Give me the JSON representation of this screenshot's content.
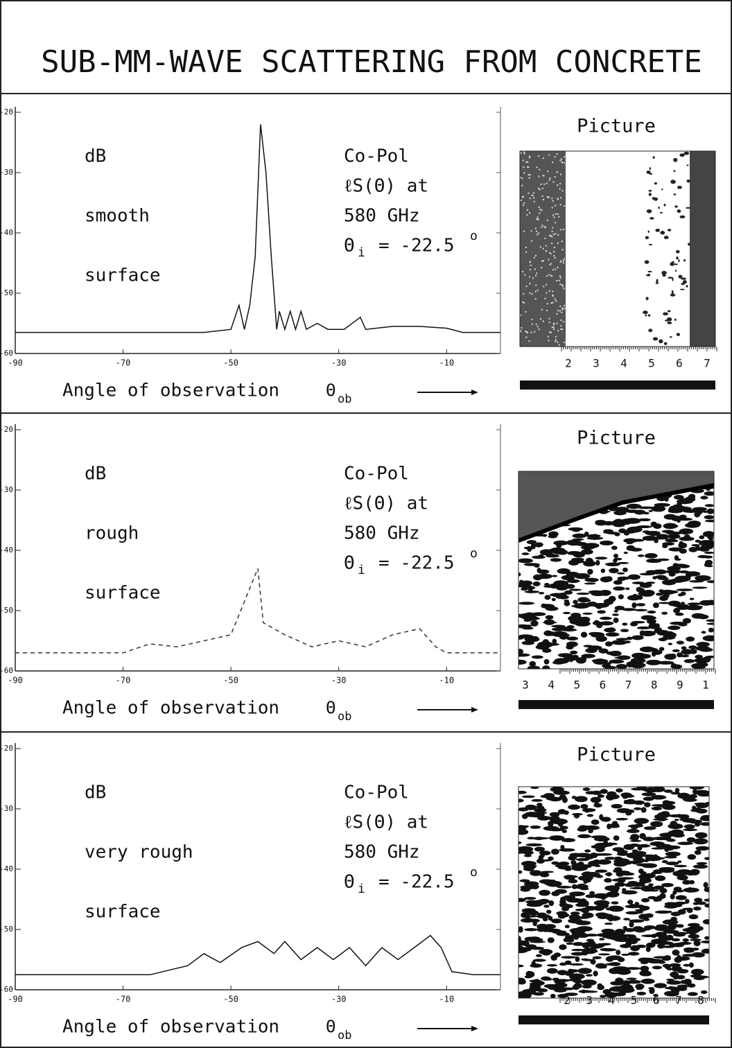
{
  "title": "SUB-MM-WAVE SCATTERING FROM CONCRETE",
  "chart_data": [
    {
      "type": "line",
      "labels_left": [
        "dB",
        "smooth",
        "surface"
      ],
      "labels_right": [
        "Co-Pol",
        "ℓS(Θ) at",
        "580 GHz"
      ],
      "incidence": {
        "symbol": "Θ",
        "sub": "i",
        "text": "= -22.5",
        "sup": "o"
      },
      "x_label": "Angle of observation",
      "x_symbol": {
        "symbol": "Θ",
        "sub": "ob"
      },
      "x": [
        -90,
        -55,
        -50,
        -48.5,
        -47.5,
        -46.5,
        -45.5,
        -44.5,
        -43.5,
        -42.5,
        -41.5,
        -41,
        -40,
        -39,
        -38,
        -37,
        -36,
        -34,
        -32,
        -29,
        -26,
        -25,
        -20,
        -15,
        -10,
        -7,
        0
      ],
      "series": [
        {
          "color": "#111111",
          "line_style": "solid",
          "values": [
            -56.5,
            -56.5,
            -56,
            -52,
            -56,
            -52,
            -44,
            -22,
            -30,
            -44,
            -56,
            -53,
            -56,
            -53,
            -56,
            -53,
            -56,
            -55,
            -56,
            -56,
            -54,
            -56,
            -55.5,
            -55.5,
            -55.8,
            -56.5,
            -56.5
          ]
        }
      ],
      "xlim": [
        -90,
        0
      ],
      "ylim": [
        -60,
        -20
      ],
      "xticks": [
        -90,
        -70,
        -50,
        -30,
        -10
      ],
      "yticks": [
        -60,
        -50,
        -40,
        -30,
        -20
      ]
    },
    {
      "type": "line",
      "labels_left": [
        "dB",
        "rough",
        "surface"
      ],
      "labels_right": [
        "Co-Pol",
        "ℓS(Θ) at",
        "580 GHz"
      ],
      "incidence": {
        "symbol": "Θ",
        "sub": "i",
        "text": "= -22.5",
        "sup": "o"
      },
      "x_label": "Angle of observation",
      "x_symbol": {
        "symbol": "Θ",
        "sub": "ob"
      },
      "x": [
        -90,
        -70,
        -65,
        -60,
        -55,
        -50,
        -45,
        -44,
        -40,
        -35,
        -30,
        -25,
        -20,
        -15,
        -12,
        -10,
        0
      ],
      "series": [
        {
          "color": "#333333",
          "line_style": "dashed",
          "values": [
            -57,
            -57,
            -55.5,
            -56,
            -55,
            -54,
            -43,
            -52,
            -54,
            -56,
            -55,
            -56,
            -54,
            -53,
            -56,
            -57,
            -57
          ]
        }
      ],
      "xlim": [
        -90,
        0
      ],
      "ylim": [
        -60,
        -20
      ],
      "xticks": [
        -90,
        -70,
        -50,
        -30,
        -10
      ],
      "yticks": [
        -60,
        -50,
        -40,
        -30,
        -20
      ]
    },
    {
      "type": "line",
      "labels_left": [
        "dB",
        "very rough",
        "surface"
      ],
      "labels_right": [
        "Co-Pol",
        "ℓS(Θ) at",
        "580 GHz"
      ],
      "incidence": {
        "symbol": "Θ",
        "sub": "i",
        "text": "= -22.5",
        "sup": "o"
      },
      "x_label": "Angle of observation",
      "x_symbol": {
        "symbol": "Θ",
        "sub": "ob"
      },
      "x": [
        -90,
        -65,
        -58,
        -55,
        -52,
        -48,
        -45,
        -42,
        -40,
        -37,
        -34,
        -31,
        -28,
        -25,
        -22,
        -19,
        -16,
        -13,
        -11,
        -9,
        -5,
        0
      ],
      "series": [
        {
          "color": "#111111",
          "line_style": "solid",
          "values": [
            -57.5,
            -57.5,
            -56,
            -54,
            -55.5,
            -53,
            -52,
            -54,
            -52,
            -55,
            -53,
            -55,
            -53,
            -56,
            -53,
            -55,
            -53,
            -51,
            -53,
            -57,
            -57.5,
            -57.5
          ]
        }
      ],
      "xlim": [
        -90,
        0
      ],
      "ylim": [
        -60,
        -20
      ],
      "xticks": [
        -90,
        -70,
        -50,
        -30,
        -10
      ],
      "yticks": [
        -60,
        -50,
        -40,
        -30,
        -20
      ]
    }
  ],
  "pictures": [
    {
      "title": "Picture",
      "ruler_labels": [
        "2",
        "3",
        "4",
        "5",
        "6",
        "7"
      ]
    },
    {
      "title": "Picture",
      "ruler_labels": [
        "3",
        "4",
        "5",
        "6",
        "7",
        "8",
        "9",
        "1"
      ]
    },
    {
      "title": "Picture",
      "ruler_labels": [
        "2",
        "3",
        "4",
        "5",
        "6",
        "7",
        "8"
      ]
    }
  ]
}
